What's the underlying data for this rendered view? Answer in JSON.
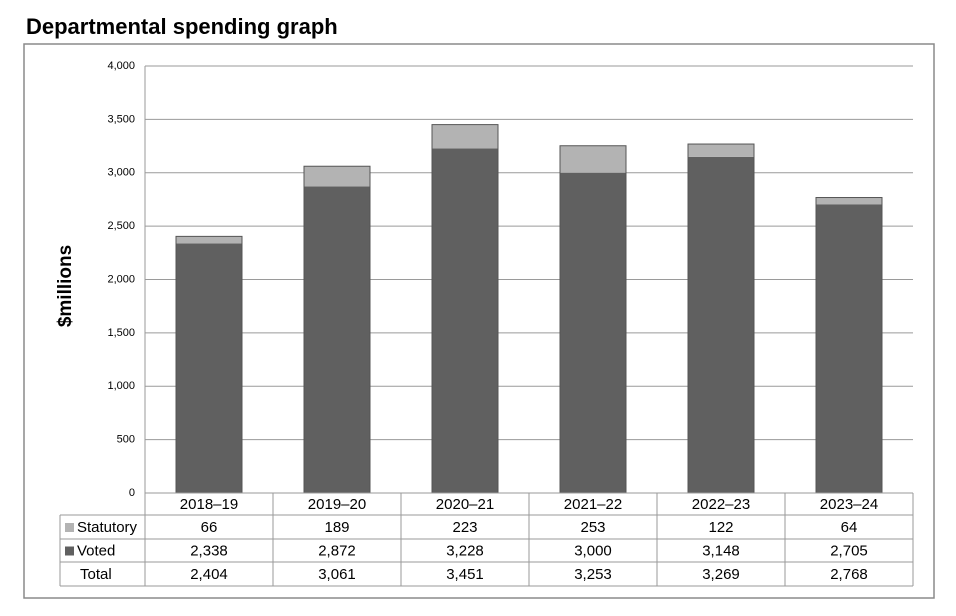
{
  "chart_data": {
    "type": "bar",
    "stacked": true,
    "title": "Departmental spending graph",
    "y_label": "$millions",
    "categories": [
      "2018–19",
      "2019–20",
      "2020–21",
      "2021–22",
      "2022–23",
      "2023–24"
    ],
    "series": [
      {
        "name": "Voted",
        "color": "#606060",
        "values": [
          2338,
          2872,
          3228,
          3000,
          3148,
          2705
        ],
        "value_labels": [
          "2,338",
          "2,872",
          "3,228",
          "3,000",
          "3,148",
          "2,705"
        ]
      },
      {
        "name": "Statutory",
        "color": "#b3b3b3",
        "values": [
          66,
          189,
          223,
          253,
          122,
          64
        ],
        "value_labels": [
          "66",
          "189",
          "223",
          "253",
          "122",
          "64"
        ]
      }
    ],
    "total": {
      "name": "Total",
      "values": [
        2404,
        3061,
        3451,
        3253,
        3269,
        2768
      ],
      "value_labels": [
        "2,404",
        "3,061",
        "3,451",
        "3,253",
        "3,269",
        "2,768"
      ]
    },
    "ylim": [
      0,
      4000
    ],
    "yticks": [
      0,
      500,
      {
        "value": 1000,
        "label": "1,000"
      },
      {
        "value": 1500,
        "label": "1,500"
      },
      {
        "value": 2000,
        "label": "2,000"
      },
      {
        "value": 2500,
        "label": "2,500"
      },
      {
        "value": 3000,
        "label": "3,000"
      },
      {
        "value": 3500,
        "label": "3,500"
      },
      {
        "value": 4000,
        "label": "4,000"
      }
    ],
    "grid": true
  }
}
